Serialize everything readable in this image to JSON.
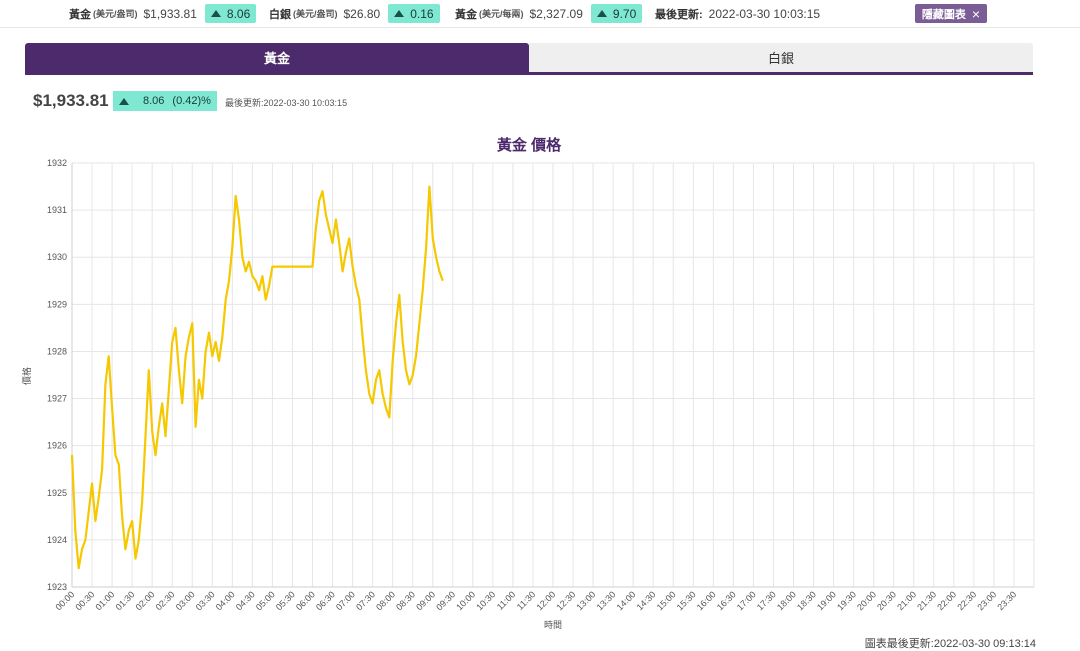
{
  "ticker": {
    "gold": {
      "name": "黃金",
      "unit": "(美元/盎司)",
      "price": "$1,933.81",
      "change": "8.06"
    },
    "silver": {
      "name": "白銀",
      "unit": "(美元/盎司)",
      "price": "$26.80",
      "change": "0.16"
    },
    "gold_tael": {
      "name": "黃金",
      "unit": "(美元/每兩)",
      "price": "$2,327.09",
      "change": "9.70"
    },
    "updated_label": "最後更新:",
    "updated_value": "2022-03-30 10:03:15",
    "hide_button": "隱藏圖表",
    "close_glyph": "×"
  },
  "tabs": [
    {
      "label": "黃金",
      "active": true
    },
    {
      "label": "白銀",
      "active": false
    }
  ],
  "summary": {
    "price": "$1,933.81",
    "change": "8.06",
    "percent": "(0.42)%",
    "updated": "最後更新:2022-03-30 10:03:15"
  },
  "footer": {
    "updated": "圖表最後更新:2022-03-30 09:13:14"
  },
  "colors": {
    "accent": "#4d2a6b",
    "line": "#f5c800",
    "chip": "#7fe8d2",
    "button": "#7b5d96"
  },
  "chart_data": {
    "type": "line",
    "title": "黃金 價格",
    "xlabel": "時間",
    "ylabel": "價格",
    "ylim": [
      1923,
      1932
    ],
    "yticks": [
      1923,
      1924,
      1925,
      1926,
      1927,
      1928,
      1929,
      1930,
      1931,
      1932
    ],
    "xticks": [
      "00:00",
      "00:30",
      "01:00",
      "01:30",
      "02:00",
      "02:30",
      "03:00",
      "03:30",
      "04:00",
      "04:30",
      "05:00",
      "05:30",
      "06:00",
      "06:30",
      "07:00",
      "07:30",
      "08:00",
      "08:30",
      "09:00",
      "09:30",
      "10:00",
      "10:30",
      "11:00",
      "11:30",
      "12:00",
      "12:30",
      "13:00",
      "13:30",
      "14:00",
      "14:30",
      "15:00",
      "15:30",
      "16:00",
      "16:30",
      "17:00",
      "17:30",
      "18:00",
      "18:30",
      "19:00",
      "19:30",
      "20:00",
      "20:30",
      "21:00",
      "21:30",
      "22:00",
      "22:30",
      "23:00",
      "23:30"
    ],
    "grid": true,
    "series": [
      {
        "x": [
          "00:00",
          "00:05",
          "00:10",
          "00:15",
          "00:20",
          "00:25",
          "00:30",
          "00:35",
          "00:40",
          "00:45",
          "00:50",
          "00:55",
          "01:00",
          "01:05",
          "01:10",
          "01:15",
          "01:20",
          "01:25",
          "01:30",
          "01:35",
          "01:40",
          "01:45",
          "01:50",
          "01:55",
          "02:00",
          "02:05",
          "02:10",
          "02:15",
          "02:20",
          "02:25",
          "02:30",
          "02:35",
          "02:40",
          "02:45",
          "02:50",
          "02:55",
          "03:00",
          "03:05",
          "03:10",
          "03:15",
          "03:20",
          "03:25",
          "03:30",
          "03:35",
          "03:40",
          "03:45",
          "03:50",
          "03:55",
          "04:00",
          "04:05",
          "04:10",
          "04:15",
          "04:20",
          "04:25",
          "04:30",
          "04:35",
          "04:40",
          "04:45",
          "04:50",
          "04:55",
          "05:00",
          "05:15",
          "05:30",
          "05:45",
          "06:00",
          "06:05",
          "06:10",
          "06:15",
          "06:20",
          "06:25",
          "06:30",
          "06:35",
          "06:40",
          "06:45",
          "06:50",
          "06:55",
          "07:00",
          "07:05",
          "07:10",
          "07:15",
          "07:20",
          "07:25",
          "07:30",
          "07:35",
          "07:40",
          "07:45",
          "07:50",
          "07:55",
          "08:00",
          "08:05",
          "08:10",
          "08:15",
          "08:20",
          "08:25",
          "08:30",
          "08:35",
          "08:40",
          "08:45",
          "08:50",
          "08:55",
          "09:00",
          "09:05",
          "09:10",
          "09:15"
        ],
        "values": [
          1925.8,
          1924.2,
          1923.4,
          1923.8,
          1924.0,
          1924.6,
          1925.2,
          1924.4,
          1924.9,
          1925.5,
          1927.3,
          1927.9,
          1926.8,
          1925.8,
          1925.6,
          1924.5,
          1923.8,
          1924.2,
          1924.4,
          1923.6,
          1924.0,
          1924.8,
          1926.2,
          1927.6,
          1926.3,
          1925.8,
          1926.4,
          1926.9,
          1926.2,
          1927.2,
          1928.2,
          1928.5,
          1927.6,
          1926.9,
          1927.9,
          1928.3,
          1928.6,
          1926.4,
          1927.4,
          1927.0,
          1928.0,
          1928.4,
          1927.9,
          1928.2,
          1927.8,
          1928.3,
          1929.1,
          1929.5,
          1930.2,
          1931.3,
          1930.8,
          1930.0,
          1929.7,
          1929.9,
          1929.6,
          1929.5,
          1929.3,
          1929.6,
          1929.1,
          1929.4,
          1929.8,
          1929.8,
          1929.8,
          1929.8,
          1929.8,
          1930.6,
          1931.2,
          1931.4,
          1930.9,
          1930.6,
          1930.3,
          1930.8,
          1930.3,
          1929.7,
          1930.1,
          1930.4,
          1929.8,
          1929.4,
          1929.1,
          1928.3,
          1927.6,
          1927.1,
          1926.9,
          1927.4,
          1927.6,
          1927.1,
          1926.8,
          1926.6,
          1927.8,
          1928.6,
          1929.2,
          1928.2,
          1927.6,
          1927.3,
          1927.5,
          1927.9,
          1928.6,
          1929.3,
          1930.2,
          1931.5,
          1930.4,
          1930.0,
          1929.7,
          1929.5
        ]
      }
    ]
  }
}
